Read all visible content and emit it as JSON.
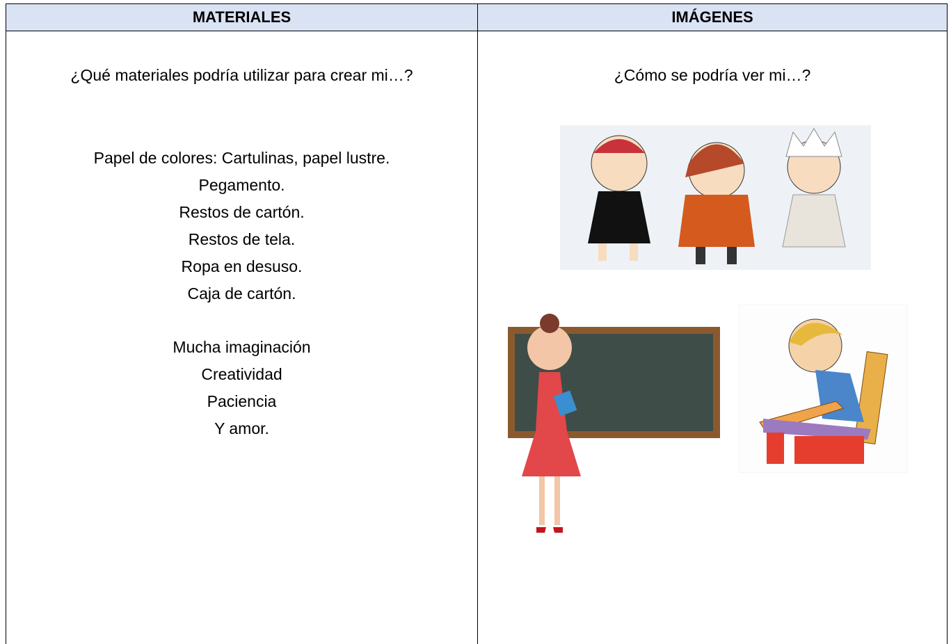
{
  "table": {
    "headers": [
      "MATERIALES",
      "IMÁGENES"
    ],
    "materiales": {
      "question": "¿Qué materiales podría utilizar para crear mi…?",
      "items": [
        "Papel de colores: Cartulinas, papel lustre.",
        "Pegamento.",
        "Restos de cartón.",
        "Restos de tela.",
        "Ropa en desuso.",
        "Caja de cartón."
      ],
      "qualities": [
        "Mucha imaginación",
        "Creatividad",
        "Paciencia",
        "Y amor."
      ]
    },
    "imagenes": {
      "question": "¿Cómo se podría ver mi…?"
    }
  }
}
